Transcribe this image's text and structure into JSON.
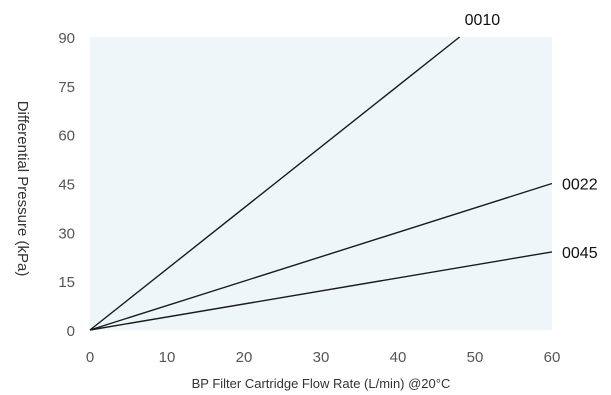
{
  "chart_data": {
    "type": "line",
    "xlabel": "BP Filter Cartridge Flow Rate (L/min) @20°C",
    "ylabel": "Differential Pressure (kPa)",
    "xlim": [
      0,
      60
    ],
    "ylim": [
      0,
      90
    ],
    "x_ticks": [
      0,
      10,
      20,
      30,
      40,
      50,
      60
    ],
    "y_ticks": [
      0,
      15,
      30,
      45,
      60,
      75,
      90
    ],
    "grid": false,
    "series": [
      {
        "name": "0010",
        "x": [
          0,
          48
        ],
        "y": [
          0,
          90
        ]
      },
      {
        "name": "0022",
        "x": [
          0,
          60
        ],
        "y": [
          0,
          45
        ]
      },
      {
        "name": "0045",
        "x": [
          0,
          60
        ],
        "y": [
          0,
          24
        ]
      }
    ]
  },
  "colors": {
    "plot_background": "#eef6f9",
    "line": "#1a1a1a"
  }
}
